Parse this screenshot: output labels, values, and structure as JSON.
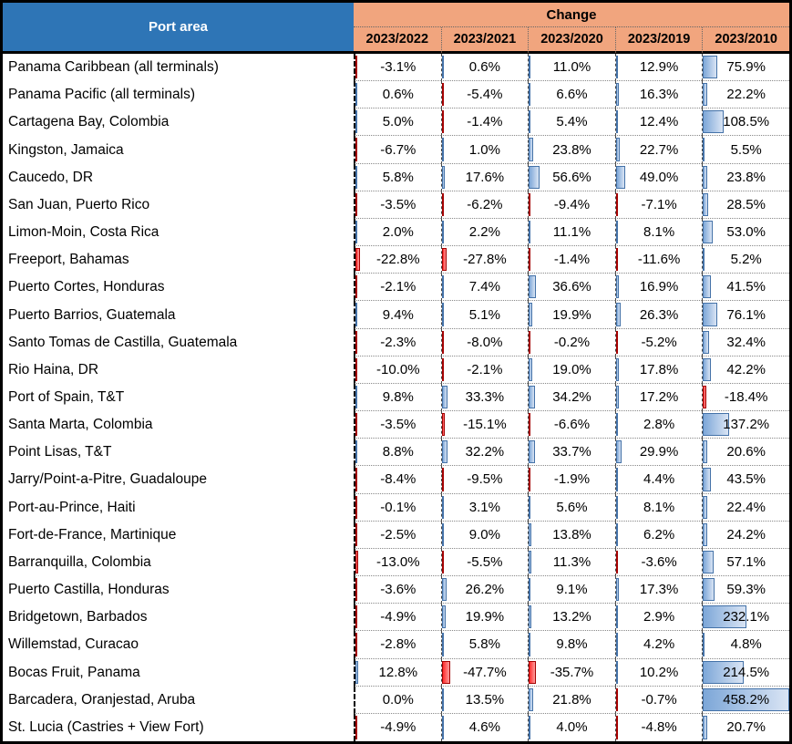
{
  "header": {
    "port_area_label": "Port area",
    "change_label": "Change",
    "columns": [
      "2023/2022",
      "2023/2021",
      "2023/2020",
      "2023/2019",
      "2023/2010"
    ]
  },
  "colors": {
    "header_blue": "#2E75B6",
    "header_orange": "#F1A57E",
    "bar_positive_fill": "#7DA7D8",
    "bar_positive_light": "#D9E4F4",
    "bar_positive_border": "#4472A8",
    "bar_negative_fill": "#FF2B2B",
    "bar_negative_light": "#FF9C9C",
    "bar_negative_border": "#A40000"
  },
  "chart_data": {
    "type": "table",
    "title": "Change",
    "row_header": "Port area",
    "columns": [
      "2023/2022",
      "2023/2021",
      "2023/2020",
      "2023/2019",
      "2023/2010"
    ],
    "value_format": "percent_one_decimal",
    "data_bars": {
      "positive_color": "blue",
      "negative_color": "red",
      "scaled_to_max_abs": 458.2
    },
    "rows": [
      {
        "port": "Panama Caribbean (all terminals)",
        "values": [
          -3.1,
          0.6,
          11.0,
          12.9,
          75.9
        ]
      },
      {
        "port": "Panama Pacific (all terminals)",
        "values": [
          0.6,
          -5.4,
          6.6,
          16.3,
          22.2
        ]
      },
      {
        "port": "Cartagena Bay, Colombia",
        "values": [
          5.0,
          -1.4,
          5.4,
          12.4,
          108.5
        ]
      },
      {
        "port": "Kingston, Jamaica",
        "values": [
          -6.7,
          1.0,
          23.8,
          22.7,
          5.5
        ]
      },
      {
        "port": "Caucedo, DR",
        "values": [
          5.8,
          17.6,
          56.6,
          49.0,
          23.8
        ]
      },
      {
        "port": "San Juan, Puerto Rico",
        "values": [
          -3.5,
          -6.2,
          -9.4,
          -7.1,
          28.5
        ]
      },
      {
        "port": "Limon-Moin, Costa Rica",
        "values": [
          2.0,
          2.2,
          11.1,
          8.1,
          53.0
        ]
      },
      {
        "port": "Freeport, Bahamas",
        "values": [
          -22.8,
          -27.8,
          -1.4,
          -11.6,
          5.2
        ]
      },
      {
        "port": "Puerto Cortes, Honduras",
        "values": [
          -2.1,
          7.4,
          36.6,
          16.9,
          41.5
        ]
      },
      {
        "port": "Puerto Barrios, Guatemala",
        "values": [
          9.4,
          5.1,
          19.9,
          26.3,
          76.1
        ]
      },
      {
        "port": "Santo Tomas de Castilla, Guatemala",
        "values": [
          -2.3,
          -8.0,
          -0.2,
          -5.2,
          32.4
        ]
      },
      {
        "port": "Rio Haina, DR",
        "values": [
          -10.0,
          -2.1,
          19.0,
          17.8,
          42.2
        ]
      },
      {
        "port": "Port of Spain, T&T",
        "values": [
          9.8,
          33.3,
          34.2,
          17.2,
          -18.4
        ]
      },
      {
        "port": "Santa Marta, Colombia",
        "values": [
          -3.5,
          -15.1,
          -6.6,
          2.8,
          137.2
        ]
      },
      {
        "port": "Point Lisas, T&T",
        "values": [
          8.8,
          32.2,
          33.7,
          29.9,
          20.6
        ]
      },
      {
        "port": "Jarry/Point-a-Pitre, Guadaloupe",
        "values": [
          -8.4,
          -9.5,
          -1.9,
          4.4,
          43.5
        ]
      },
      {
        "port": "Port-au-Prince, Haiti",
        "values": [
          -0.1,
          3.1,
          5.6,
          8.1,
          22.4
        ]
      },
      {
        "port": "Fort-de-France, Martinique",
        "values": [
          -2.5,
          9.0,
          13.8,
          6.2,
          24.2
        ]
      },
      {
        "port": "Barranquilla, Colombia",
        "values": [
          -13.0,
          -5.5,
          11.3,
          -3.6,
          57.1
        ]
      },
      {
        "port": "Puerto Castilla, Honduras",
        "values": [
          -3.6,
          26.2,
          9.1,
          17.3,
          59.3
        ]
      },
      {
        "port": "Bridgetown, Barbados",
        "values": [
          -4.9,
          19.9,
          13.2,
          2.9,
          232.1
        ]
      },
      {
        "port": "Willemstad, Curacao",
        "values": [
          -2.8,
          5.8,
          9.8,
          4.2,
          4.8
        ]
      },
      {
        "port": "Bocas Fruit, Panama",
        "values": [
          12.8,
          -47.7,
          -35.7,
          10.2,
          214.5
        ]
      },
      {
        "port": "Barcadera, Oranjestad, Aruba",
        "values": [
          0.0,
          13.5,
          21.8,
          -0.7,
          458.2
        ]
      },
      {
        "port": "St. Lucia (Castries + View Fort)",
        "values": [
          -4.9,
          4.6,
          4.0,
          -4.8,
          20.7
        ]
      }
    ]
  }
}
